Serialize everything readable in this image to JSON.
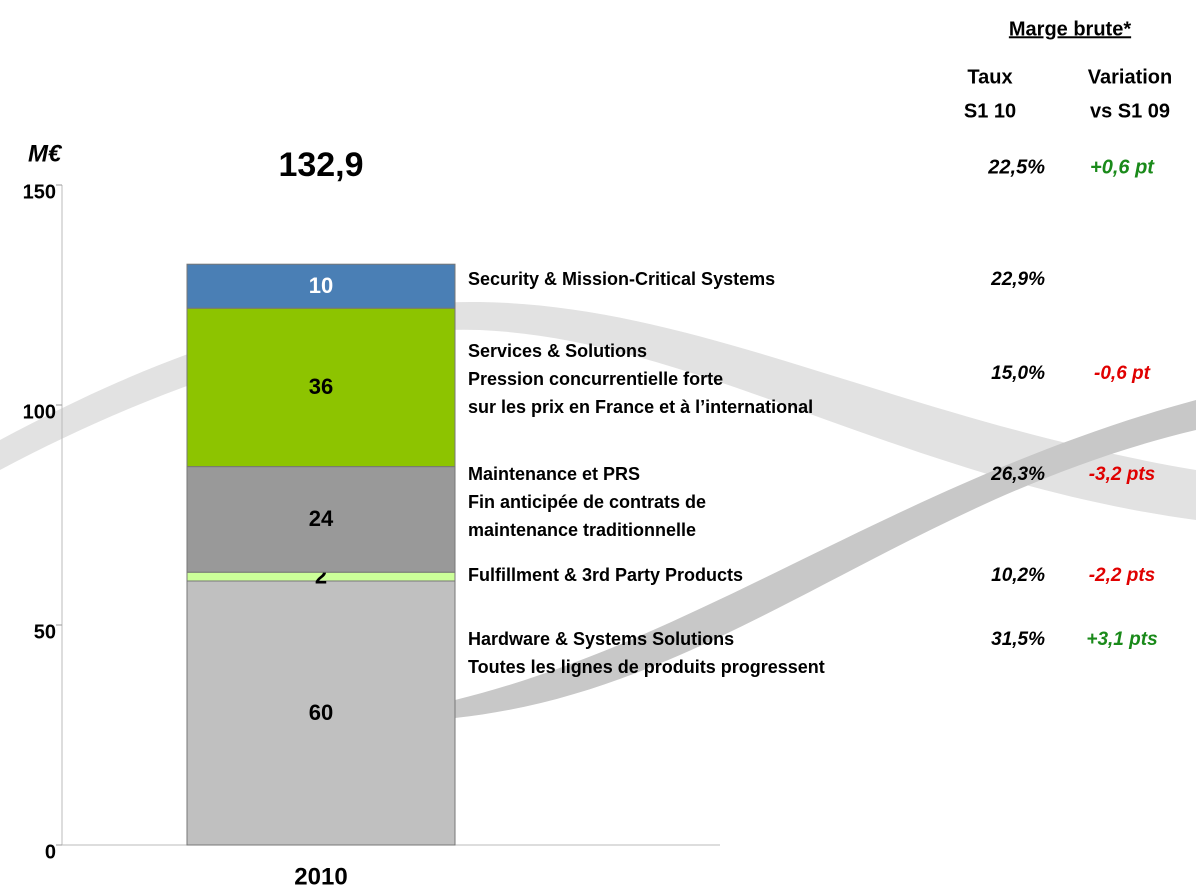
{
  "chart_data": {
    "type": "bar",
    "stacked": true,
    "unit_label": "M€",
    "total": {
      "value": 132.9,
      "label": "132,9"
    },
    "categories": [
      "2010"
    ],
    "ylim": [
      0,
      150
    ],
    "yticks": [
      0,
      50,
      100,
      150
    ],
    "series": [
      {
        "name": "Hardware & Systems Solutions",
        "details": [
          "Toutes les lignes de produits progressent"
        ],
        "color": "#c0c0c0",
        "label_color": "#000000",
        "values": [
          60
        ]
      },
      {
        "name": "Fulfillment & 3rd Party Products",
        "details": [],
        "color": "#ccff99",
        "label_color": "#000000",
        "values": [
          2
        ]
      },
      {
        "name": "Maintenance et PRS",
        "details": [
          "Fin anticipée de contrats de",
          "maintenance traditionnelle"
        ],
        "color": "#999999",
        "label_color": "#000000",
        "values": [
          24
        ]
      },
      {
        "name": "Services & Solutions",
        "details": [
          "Pression concurrentielle forte",
          "sur les prix en France et à l’international"
        ],
        "color": "#8dc400",
        "label_color": "#000000",
        "values": [
          36
        ]
      },
      {
        "name": "Security & Mission-Critical Systems",
        "details": [],
        "color": "#4a7fb5",
        "label_color": "#ffffff",
        "values": [
          10
        ]
      }
    ]
  },
  "margin_table": {
    "title": "Marge brute*",
    "headers": [
      [
        "Taux",
        "S1 10"
      ],
      [
        "Variation",
        "vs S1 09"
      ]
    ],
    "total": {
      "rate": "22,5%",
      "variation": "+0,6 pt",
      "variation_color": "#1a8a1a"
    },
    "rows": [
      {
        "rate": "31,5%",
        "variation": "+3,1 pts",
        "variation_color": "#1a8a1a"
      },
      {
        "rate": "10,2%",
        "variation": "-2,2 pts",
        "variation_color": "#e00000"
      },
      {
        "rate": "26,3%",
        "variation": "-3,2 pts",
        "variation_color": "#e00000"
      },
      {
        "rate": "15,0%",
        "variation": "-0,6 pt",
        "variation_color": "#e00000"
      },
      {
        "rate": "22,9%"
      }
    ]
  }
}
